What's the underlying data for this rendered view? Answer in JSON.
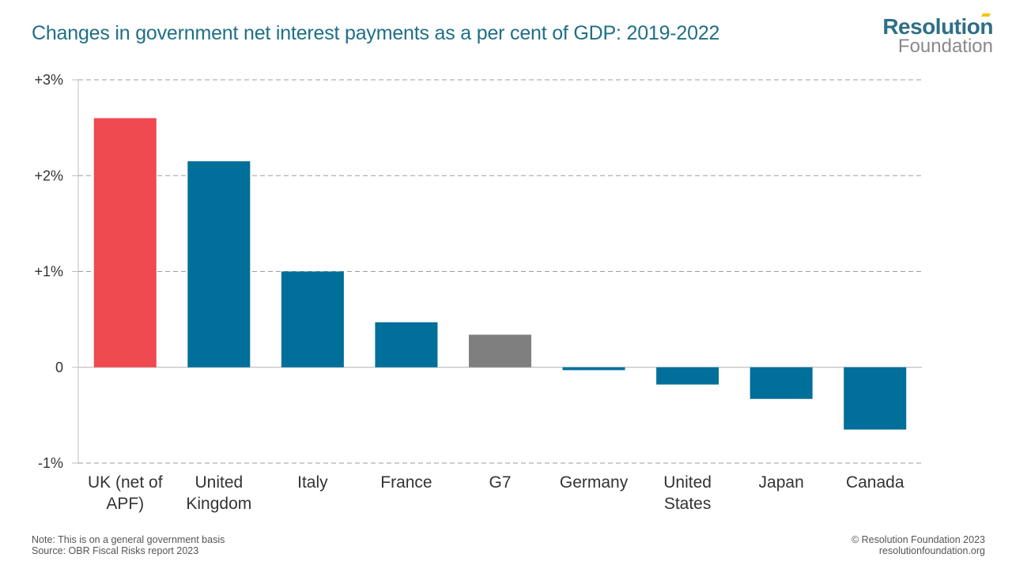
{
  "header": {
    "title": "Changes in government net interest payments as a per cent of GDP: 2019-2022"
  },
  "brand": {
    "line1": "Resolution",
    "line2": "Foundation"
  },
  "footer": {
    "note": "Note: This is on a general government basis",
    "source": "Source: OBR Fiscal Risks report 2023",
    "copyright": "© Resolution Foundation 2023",
    "url": "resolutionfoundation.org"
  },
  "colors": {
    "highlight": "#ee4a4f",
    "primary": "#006f9a",
    "aggregate": "#7f7f7f",
    "title": "#1f6f86"
  },
  "chart_data": {
    "type": "bar",
    "title": "Changes in government net interest payments as a per cent of GDP: 2019-2022",
    "xlabel": "",
    "ylabel": "",
    "ylim": [
      -1,
      3
    ],
    "grid": true,
    "y_ticks": [
      {
        "value": 3,
        "label": "+3%"
      },
      {
        "value": 2,
        "label": "+2%"
      },
      {
        "value": 1,
        "label": "+1%"
      },
      {
        "value": 0,
        "label": "0"
      },
      {
        "value": -1,
        "label": "-1%"
      }
    ],
    "categories": [
      [
        "UK (net of",
        "APF)"
      ],
      [
        "United",
        "Kingdom"
      ],
      [
        "Italy"
      ],
      [
        "France"
      ],
      [
        "G7"
      ],
      [
        "Germany"
      ],
      [
        "United",
        "States"
      ],
      [
        "Japan"
      ],
      [
        "Canada"
      ]
    ],
    "values": [
      2.6,
      2.15,
      1.0,
      0.47,
      0.34,
      -0.03,
      -0.18,
      -0.33,
      -0.65
    ],
    "bar_colors": [
      "#ee4a4f",
      "#006f9a",
      "#006f9a",
      "#006f9a",
      "#7f7f7f",
      "#006f9a",
      "#006f9a",
      "#006f9a",
      "#006f9a"
    ]
  }
}
